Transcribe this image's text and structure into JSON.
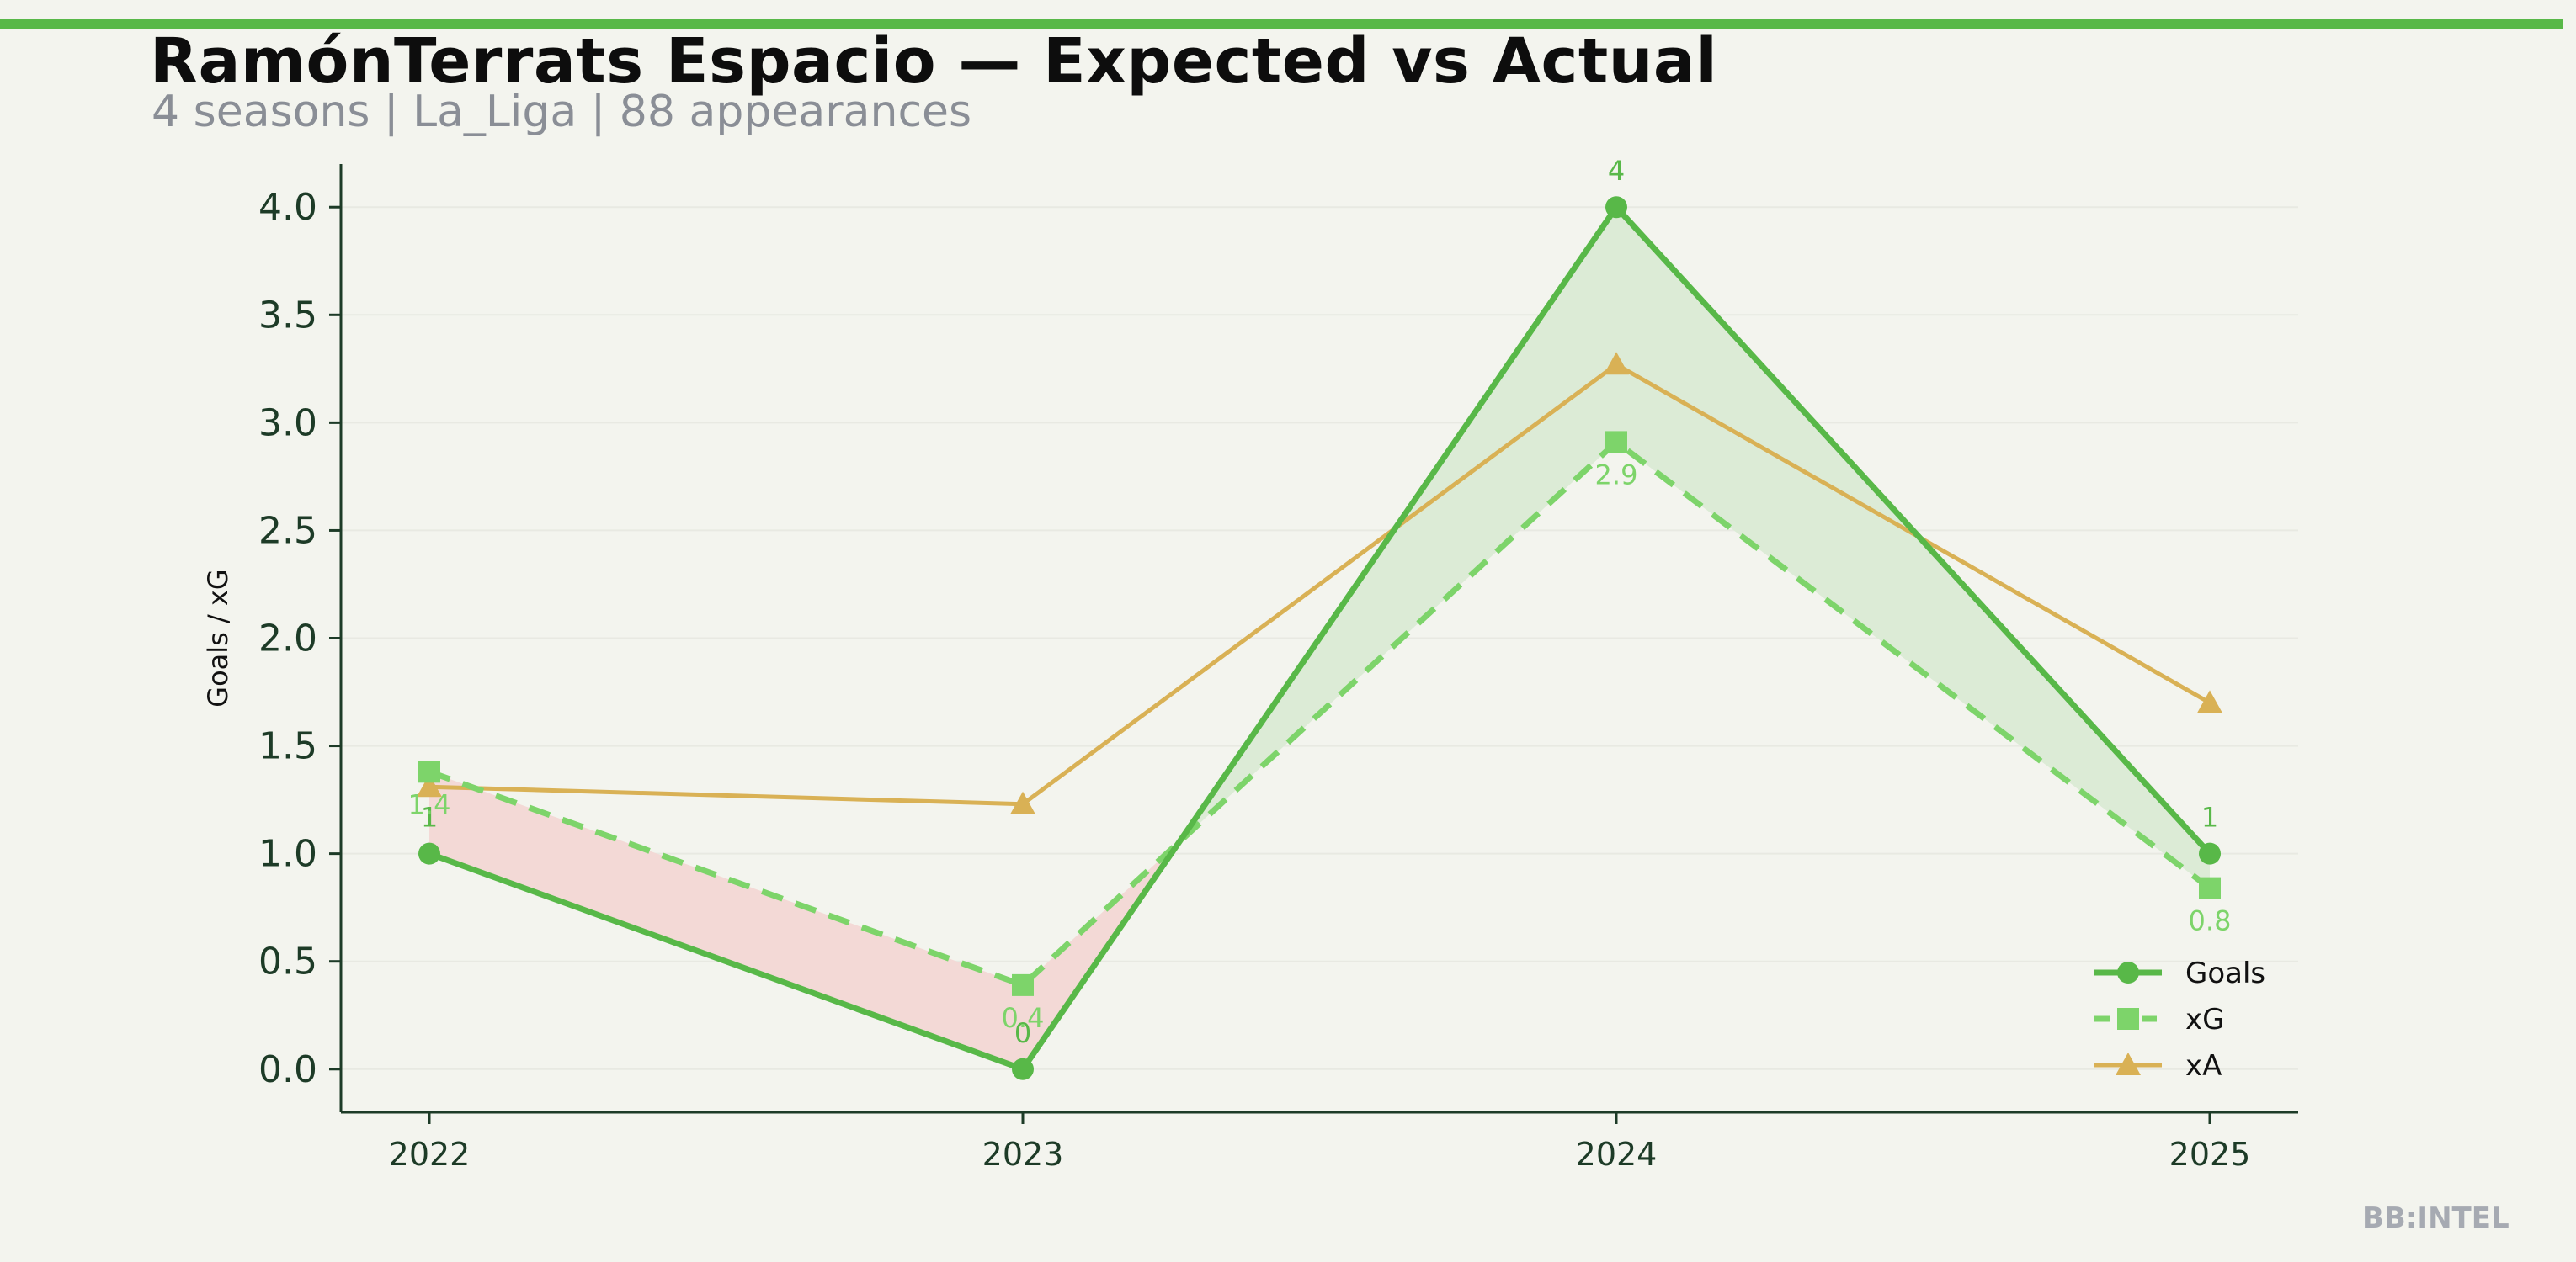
{
  "header": {
    "title": "RamónTerrats Espacio — Expected vs Actual",
    "subtitle": "4 seasons | La_Liga | 88 appearances"
  },
  "footer": {
    "watermark": "BB:INTEL"
  },
  "colors": {
    "accent_bar": "#58b848",
    "goals": "#58b848",
    "xg": "#7dd46a",
    "xa": "#d9b155",
    "fill_over": "#dcebd6",
    "fill_under": "#f3d9d6",
    "axis": "#1d3b27",
    "background": "#f3f4ee"
  },
  "chart_data": {
    "type": "line",
    "x": [
      "2022",
      "2023",
      "2024",
      "2025"
    ],
    "ylabel": "Goals / xG",
    "ylim": [
      -0.2,
      4.2
    ],
    "yticks": [
      0.0,
      0.5,
      1.0,
      1.5,
      2.0,
      2.5,
      3.0,
      3.5,
      4.0
    ],
    "grid": true,
    "legend_position": "bottom-right",
    "series": [
      {
        "name": "Goals",
        "values": [
          1,
          0,
          4,
          1
        ],
        "labels": [
          "1",
          "0",
          "4",
          "1"
        ],
        "marker": "circle",
        "style": "solid"
      },
      {
        "name": "xG",
        "values": [
          1.38,
          0.39,
          2.91,
          0.84
        ],
        "labels": [
          "1.4",
          "0.4",
          "2.9",
          "0.8"
        ],
        "marker": "square",
        "style": "dashed"
      },
      {
        "name": "xA",
        "values": [
          1.31,
          1.23,
          3.27,
          1.7
        ],
        "marker": "triangle",
        "style": "solid"
      }
    ]
  }
}
